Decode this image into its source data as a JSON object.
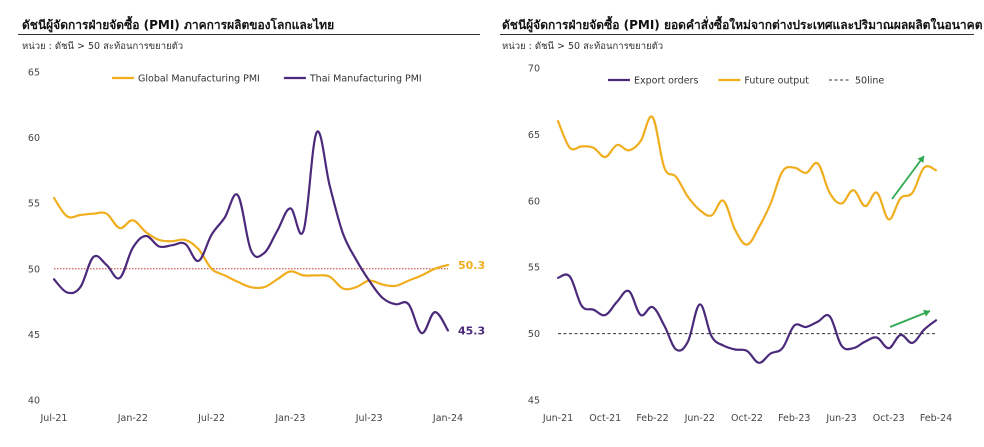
{
  "chart_data": [
    {
      "type": "line",
      "title": "ดัชนีผู้จัดการฝ่ายจัดซื้อ (PMI) ภาคการผลิตของโลกและไทย",
      "subtitle": "หน่วย : ดัชนี > 50 สะท้อนการขยายตัว",
      "ylim": [
        40,
        65
      ],
      "yticks": [
        40,
        45,
        50,
        55,
        60,
        65
      ],
      "x_tick_labels": [
        "Jul-21",
        "Jan-22",
        "Jul-22",
        "Jan-23",
        "Jul-23",
        "Jan-24"
      ],
      "x": [
        "Jul-21",
        "Aug-21",
        "Sep-21",
        "Oct-21",
        "Nov-21",
        "Dec-21",
        "Jan-22",
        "Feb-22",
        "Mar-22",
        "Apr-22",
        "May-22",
        "Jun-22",
        "Jul-22",
        "Aug-22",
        "Sep-22",
        "Oct-22",
        "Nov-22",
        "Dec-22",
        "Jan-23",
        "Feb-23",
        "Mar-23",
        "Apr-23",
        "May-23",
        "Jun-23",
        "Jul-23",
        "Aug-23",
        "Sep-23",
        "Oct-23",
        "Nov-23",
        "Dec-23",
        "Jan-24"
      ],
      "reference_line": {
        "value": 50,
        "color": "#c0392b"
      },
      "legend_position": "top",
      "series": [
        {
          "name": "Global Manufacturing PMI",
          "color": "#f0ae1e",
          "values": [
            55.4,
            54.0,
            54.1,
            54.2,
            54.2,
            53.1,
            53.7,
            52.8,
            52.2,
            52.1,
            52.2,
            51.5,
            50.0,
            49.5,
            49.0,
            48.6,
            48.6,
            49.2,
            49.8,
            49.5,
            49.5,
            49.4,
            48.5,
            48.6,
            49.1,
            48.8,
            48.7,
            49.1,
            49.5,
            50.0,
            50.3
          ]
        },
        {
          "name": "Thai Manufacturing PMI",
          "color": "#4b2a7b",
          "values": [
            49.2,
            48.2,
            48.6,
            50.9,
            50.3,
            49.3,
            51.6,
            52.5,
            51.7,
            51.8,
            51.9,
            50.6,
            52.6,
            53.9,
            55.6,
            51.4,
            51.2,
            52.9,
            54.6,
            52.9,
            60.4,
            56.3,
            52.7,
            50.7,
            49.1,
            47.8,
            47.3,
            47.3,
            45.1,
            46.7,
            45.3
          ]
        }
      ],
      "end_labels": [
        "50.3",
        "45.3"
      ]
    },
    {
      "type": "line",
      "title": "ดัชนีผู้จัดการฝ่ายจัดซื้อ (PMI) ยอดคำสั่งซื้อใหม่จากต่างประเทศและปริมาณผลผลิตในอนาคต",
      "subtitle": "หน่วย : ดัชนี > 50 สะท้อนการขยายตัว",
      "ylim": [
        45,
        70
      ],
      "yticks": [
        45,
        50,
        55,
        60,
        65,
        70
      ],
      "x_tick_labels": [
        "Jun-21",
        "Oct-21",
        "Feb-22",
        "Jun-22",
        "Oct-22",
        "Feb-23",
        "Jun-23",
        "Oct-23",
        "Feb-24"
      ],
      "x": [
        "Jun-21",
        "Jul-21",
        "Aug-21",
        "Sep-21",
        "Oct-21",
        "Nov-21",
        "Dec-21",
        "Jan-22",
        "Feb-22",
        "Mar-22",
        "Apr-22",
        "May-22",
        "Jun-22",
        "Jul-22",
        "Aug-22",
        "Sep-22",
        "Oct-22",
        "Nov-22",
        "Dec-22",
        "Jan-23",
        "Feb-23",
        "Mar-23",
        "Apr-23",
        "May-23",
        "Jun-23",
        "Jul-23",
        "Aug-23",
        "Sep-23",
        "Oct-23",
        "Nov-23",
        "Dec-23",
        "Jan-24",
        "Feb-24"
      ],
      "legend_position": "top",
      "series": [
        {
          "name": "Export orders",
          "color": "#4b2a7b",
          "values": [
            54.2,
            54.3,
            52.1,
            51.8,
            51.4,
            52.4,
            53.2,
            51.4,
            52.0,
            50.6,
            48.8,
            49.4,
            52.2,
            49.8,
            49.1,
            48.8,
            48.7,
            47.8,
            48.5,
            48.9,
            50.6,
            50.5,
            50.9,
            51.3,
            49.1,
            48.9,
            49.4,
            49.7,
            48.9,
            49.9,
            49.3,
            50.3,
            51.0
          ]
        },
        {
          "name": "Future output",
          "color": "#f0ae1e",
          "values": [
            66.0,
            64.0,
            64.1,
            64.0,
            63.3,
            64.2,
            63.8,
            64.5,
            66.3,
            62.5,
            61.8,
            60.3,
            59.3,
            58.9,
            60.0,
            57.8,
            56.7,
            58.0,
            59.8,
            62.2,
            62.5,
            62.1,
            62.8,
            60.6,
            59.8,
            60.8,
            59.6,
            60.6,
            58.6,
            60.2,
            60.6,
            62.5,
            62.3
          ]
        },
        {
          "name": "50line",
          "color": "#333333",
          "dashed": true,
          "constant": 50
        }
      ]
    }
  ]
}
